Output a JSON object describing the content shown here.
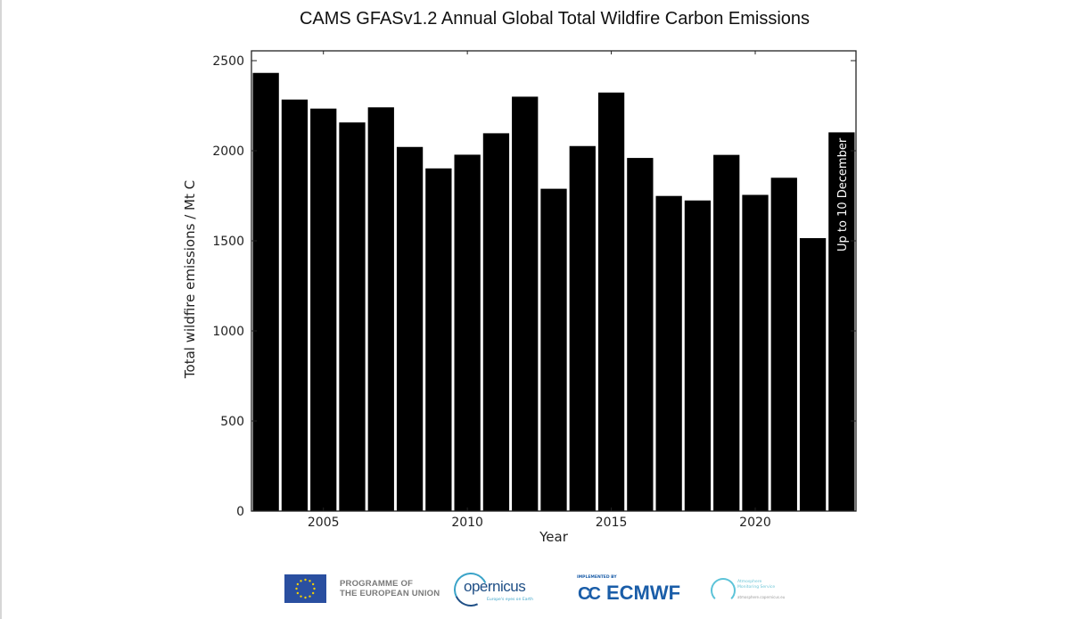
{
  "chart_data": {
    "type": "bar",
    "title": "CAMS GFASv1.2 Annual Global Total Wildfire Carbon Emissions",
    "xlabel": "Year",
    "ylabel": "Total wildfire emissions / Mt C",
    "categories": [
      2003,
      2004,
      2005,
      2006,
      2007,
      2008,
      2009,
      2010,
      2011,
      2012,
      2013,
      2014,
      2015,
      2016,
      2017,
      2018,
      2019,
      2020,
      2021,
      2022,
      2023
    ],
    "values": [
      2432,
      2284,
      2234,
      2157,
      2241,
      2021,
      1902,
      1978,
      2097,
      2300,
      1789,
      2026,
      2323,
      1960,
      1749,
      1724,
      1977,
      1755,
      1850,
      1515,
      2102
    ],
    "xlim": [
      2002.5,
      2023.5
    ],
    "ylim": [
      0,
      2550
    ],
    "xticks": [
      2005,
      2010,
      2015,
      2020
    ],
    "xtick_labels": [
      "2005",
      "2010",
      "2015",
      "2020"
    ],
    "yticks": [
      0,
      500,
      1000,
      1500,
      2000,
      2500
    ],
    "ytick_labels": [
      "0",
      "500",
      "1000",
      "1500",
      "2000",
      "2500"
    ],
    "grid": false,
    "bar_color": "#000000",
    "annotations": [
      {
        "category": 2023,
        "text": "Up to 10 December",
        "orientation": "vertical",
        "placement": "inside-bar"
      }
    ]
  },
  "footer": {
    "eu_line1": "PROGRAMME OF",
    "eu_line2": "THE EUROPEAN UNION",
    "copernicus": "opernicus",
    "copernicus_tagline": "Europe's eyes on Earth",
    "implemented_by": "IMPLEMENTED BY",
    "ecmwf_mark": "CC",
    "ecmwf": "ECMWF",
    "ams_line1": "Atmosphere",
    "ams_line2": "Monitoring Service",
    "ams_url": "atmosphere.copernicus.eu"
  }
}
